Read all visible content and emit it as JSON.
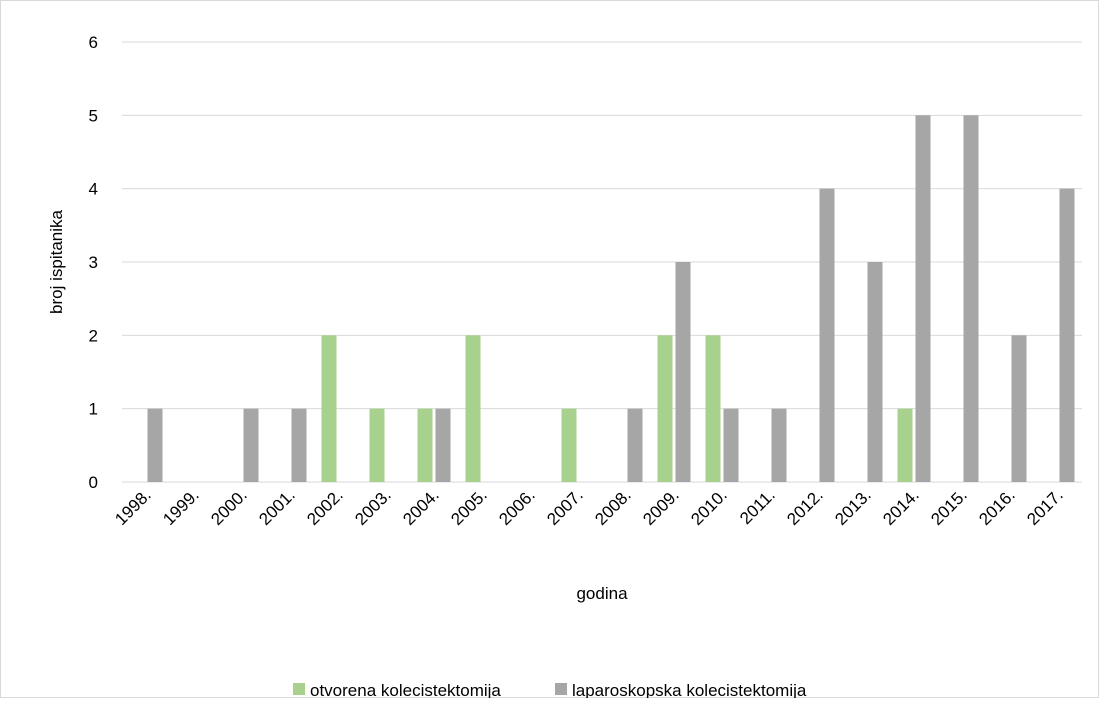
{
  "chart_data": {
    "type": "bar",
    "categories": [
      "1998.",
      "1999.",
      "2000.",
      "2001.",
      "2002.",
      "2003.",
      "2004.",
      "2005.",
      "2006.",
      "2007.",
      "2008.",
      "2009.",
      "2010.",
      "2011.",
      "2012.",
      "2013.",
      "2014.",
      "2015.",
      "2016.",
      "2017."
    ],
    "series": [
      {
        "name": "otvorena kolecistektomija",
        "color": "#a9d18e",
        "values": [
          0,
          0,
          0,
          0,
          2,
          1,
          1,
          2,
          0,
          1,
          0,
          2,
          2,
          0,
          0,
          0,
          1,
          0,
          0,
          0
        ]
      },
      {
        "name": "laparoskopska kolecistektomija",
        "color": "#a6a6a6",
        "values": [
          1,
          0,
          1,
          1,
          0,
          0,
          1,
          0,
          0,
          0,
          1,
          3,
          1,
          1,
          4,
          3,
          5,
          5,
          2,
          4
        ]
      }
    ],
    "xlabel": "godina",
    "ylabel": "broj ispitanika",
    "ylim": [
      0,
      6
    ],
    "yticks": [
      0,
      1,
      2,
      3,
      4,
      5,
      6
    ],
    "grid": true,
    "legend": "bottom"
  }
}
